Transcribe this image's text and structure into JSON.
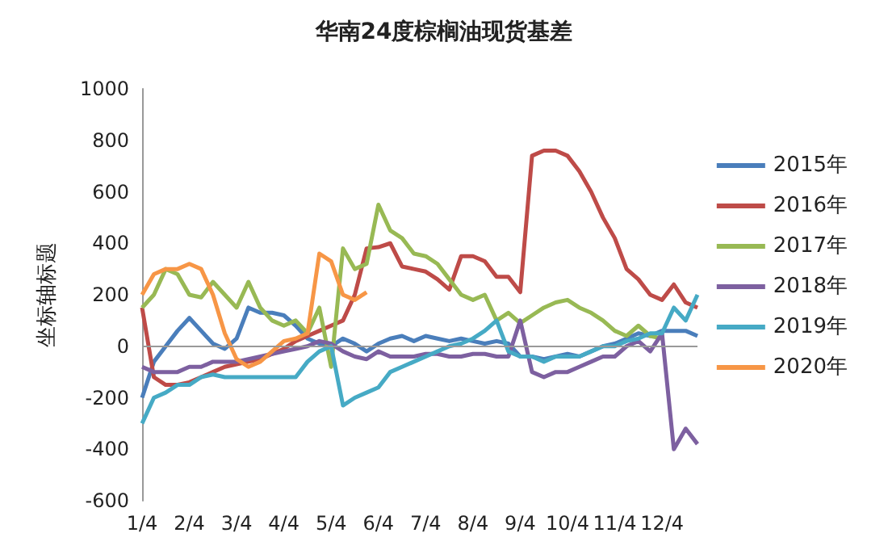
{
  "chart_data": {
    "type": "line",
    "title": "华南24度棕榈油现货基差",
    "ylabel": "坐标轴标题",
    "categories": [
      "1/4",
      null,
      null,
      null,
      "2/4",
      null,
      null,
      null,
      "3/4",
      null,
      null,
      null,
      "4/4",
      null,
      null,
      null,
      "5/4",
      null,
      null,
      null,
      "6/4",
      null,
      null,
      null,
      "7/4",
      null,
      null,
      null,
      "8/4",
      null,
      null,
      null,
      "9/4",
      null,
      null,
      null,
      "10/4",
      null,
      null,
      null,
      "11/4",
      null,
      null,
      null,
      "12/4",
      null,
      null,
      null
    ],
    "series": [
      {
        "name": "2015年",
        "color": "#4a7ebb",
        "values": [
          -200,
          -60,
          0,
          60,
          110,
          60,
          10,
          -10,
          30,
          150,
          130,
          130,
          120,
          80,
          30,
          10,
          0,
          30,
          10,
          -20,
          10,
          30,
          40,
          20,
          40,
          30,
          20,
          30,
          20,
          10,
          20,
          10,
          -40,
          -40,
          -50,
          -40,
          -30,
          -40,
          -20,
          0,
          10,
          30,
          50,
          40,
          60,
          60,
          60,
          40
        ]
      },
      {
        "name": "2016年",
        "color": "#be4b48",
        "values": [
          150,
          -120,
          -150,
          -150,
          -140,
          -120,
          -100,
          -80,
          -70,
          -60,
          -50,
          -30,
          -10,
          20,
          40,
          60,
          80,
          100,
          200,
          380,
          385,
          400,
          310,
          300,
          290,
          260,
          220,
          350,
          350,
          330,
          270,
          270,
          210,
          740,
          760,
          760,
          740,
          680,
          600,
          500,
          420,
          300,
          260,
          200,
          180,
          240,
          170,
          150
        ]
      },
      {
        "name": "2017年",
        "color": "#98b954",
        "values": [
          150,
          200,
          300,
          280,
          200,
          190,
          250,
          200,
          150,
          250,
          150,
          100,
          80,
          100,
          50,
          150,
          -80,
          380,
          300,
          320,
          550,
          450,
          420,
          360,
          350,
          320,
          260,
          200,
          180,
          200,
          100,
          130,
          90,
          120,
          150,
          170,
          180,
          150,
          130,
          100,
          60,
          40,
          80,
          40,
          30,
          null,
          null,
          null
        ]
      },
      {
        "name": "2018年",
        "color": "#7d60a0",
        "values": [
          -80,
          -100,
          -100,
          -100,
          -80,
          -80,
          -60,
          -60,
          -60,
          -50,
          -40,
          -30,
          -20,
          -10,
          0,
          20,
          10,
          -20,
          -40,
          -50,
          -20,
          -40,
          -40,
          -40,
          -30,
          -30,
          -40,
          -40,
          -30,
          -30,
          -40,
          -40,
          100,
          -100,
          -120,
          -100,
          -100,
          -80,
          -60,
          -40,
          -40,
          0,
          20,
          -20,
          50,
          -400,
          -320,
          -380
        ]
      },
      {
        "name": "2019年",
        "color": "#46aac5",
        "values": [
          -300,
          -200,
          -180,
          -150,
          -150,
          -120,
          -110,
          -120,
          -120,
          -120,
          -120,
          -120,
          -120,
          -120,
          -60,
          -20,
          0,
          -230,
          -200,
          -180,
          -160,
          -100,
          -80,
          -60,
          -40,
          -20,
          0,
          10,
          30,
          60,
          100,
          -20,
          -40,
          -40,
          -60,
          -40,
          -40,
          -40,
          -20,
          0,
          0,
          20,
          30,
          50,
          50,
          150,
          100,
          200
        ]
      },
      {
        "name": "2020年",
        "color": "#f79646",
        "values": [
          200,
          280,
          300,
          300,
          320,
          300,
          200,
          50,
          -50,
          -80,
          -60,
          -20,
          20,
          30,
          50,
          360,
          330,
          200,
          180,
          210,
          null,
          null,
          null,
          null,
          null,
          null,
          null,
          null,
          null,
          null,
          null,
          null,
          null,
          null,
          null,
          null,
          null,
          null,
          null,
          null,
          null,
          null,
          null,
          null,
          null,
          null,
          null,
          null
        ]
      }
    ],
    "ylim": [
      -600,
      1000
    ],
    "yticks": [
      -600,
      -400,
      -200,
      0,
      200,
      400,
      600,
      800,
      1000
    ],
    "ref_lines": [
      {
        "axis": "y",
        "value": 0,
        "color": "#999999"
      }
    ],
    "grid": false,
    "legend": "right",
    "marker": "none",
    "line_style": "solid"
  }
}
